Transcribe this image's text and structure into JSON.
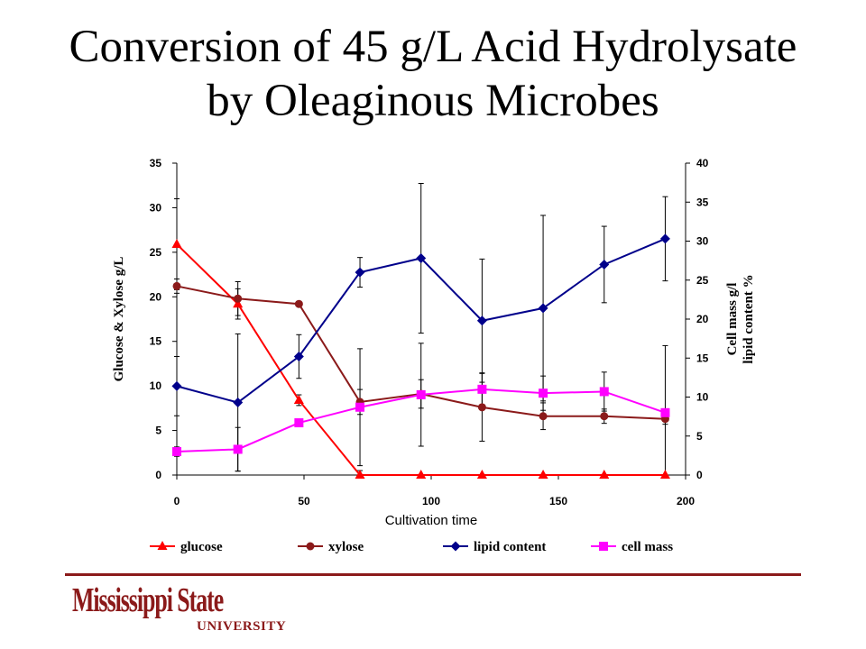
{
  "slide": {
    "title_line1": "Conversion of 45 g/L Acid Hydrolysate",
    "title_line2": "by Oleaginous Microbes",
    "logo_main": "Mississippi State",
    "logo_sub": "UNIVERSITY",
    "accent_color": "#8b1a1a"
  },
  "chart_data": {
    "type": "line",
    "title": "",
    "xlabel": "Cultivation time",
    "ylabel": "Glucose & Xylose g/L",
    "y2label_line1": "Cell mass g/l",
    "y2label_line2": "lipid content %",
    "xlim": [
      0,
      200
    ],
    "xticks": [
      0,
      50,
      100,
      150,
      200
    ],
    "ylim": [
      0,
      35
    ],
    "yticks": [
      0,
      5,
      10,
      15,
      20,
      25,
      30,
      35
    ],
    "y2lim": [
      0,
      40
    ],
    "y2ticks": [
      0,
      5,
      10,
      15,
      20,
      25,
      30,
      35,
      40
    ],
    "grid": false,
    "legend_position": "bottom",
    "series": [
      {
        "name": "glucose",
        "axis": "left",
        "color": "#ff0000",
        "marker": "triangle",
        "x": [
          0,
          24,
          48,
          72,
          96,
          120,
          144,
          168,
          192
        ],
        "y": [
          25.9,
          19.2,
          8.4,
          0,
          0,
          0,
          0,
          0,
          0
        ],
        "err": [
          5.1,
          1.7,
          0.6,
          0.5,
          0,
          0,
          0,
          0,
          0
        ]
      },
      {
        "name": "xylose",
        "axis": "left",
        "color": "#8b1a1a",
        "marker": "circle",
        "x": [
          0,
          24,
          48,
          72,
          96,
          120,
          144,
          168,
          192
        ],
        "y": [
          21.2,
          19.8,
          19.2,
          8.2,
          9.1,
          7.6,
          6.6,
          6.6,
          6.3
        ],
        "err": [
          0.8,
          1.9,
          0,
          1.4,
          1.6,
          3.8,
          1.5,
          0.8,
          0.6
        ]
      },
      {
        "name": "lipid content",
        "axis": "right",
        "color": "#00008b",
        "marker": "diamond",
        "x": [
          0,
          24,
          48,
          72,
          96,
          120,
          144,
          168,
          192
        ],
        "y": [
          11.4,
          9.3,
          15.2,
          26,
          27.8,
          19.8,
          21.4,
          27,
          30.3
        ],
        "err": [
          3.8,
          8.8,
          2.8,
          1.9,
          9.6,
          7.9,
          11.9,
          4.9,
          5.4
        ]
      },
      {
        "name": "cell mass",
        "axis": "right",
        "color": "#ff00ff",
        "marker": "square",
        "x": [
          0,
          24,
          48,
          72,
          96,
          120,
          144,
          168,
          192
        ],
        "y": [
          3,
          3.3,
          6.7,
          8.7,
          10.3,
          11,
          10.5,
          10.7,
          8
        ],
        "err": [
          0.6,
          2.8,
          0.4,
          7.5,
          6.6,
          2.1,
          2.2,
          2.5,
          8.6
        ]
      }
    ]
  }
}
